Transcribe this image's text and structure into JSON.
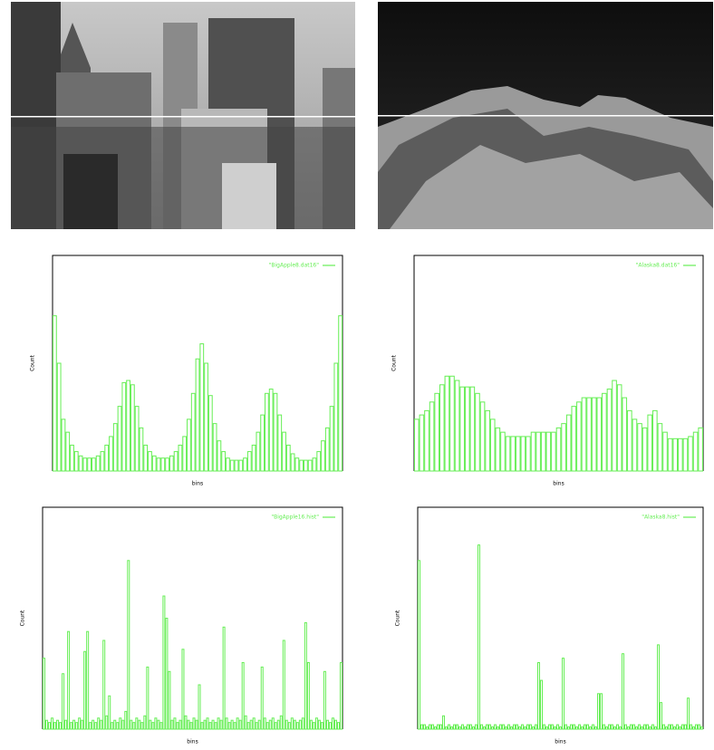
{
  "chart_data": [
    {
      "type": "bar",
      "legend": "\"BigApple8.dat16\"",
      "x_label": "bins",
      "y_label": "Count",
      "color": "#66ee55",
      "ylim": [
        0,
        100
      ],
      "values": [
        72,
        50,
        24,
        18,
        12,
        9,
        7,
        6,
        6,
        6,
        7,
        9,
        12,
        16,
        22,
        30,
        41,
        42,
        40,
        30,
        20,
        12,
        9,
        7,
        6,
        6,
        6,
        7,
        9,
        12,
        16,
        24,
        36,
        52,
        59,
        50,
        35,
        22,
        14,
        9,
        6,
        5,
        5,
        5,
        6,
        9,
        12,
        18,
        26,
        36,
        38,
        36,
        26,
        18,
        12,
        8,
        6,
        5,
        5,
        5,
        6,
        9,
        14,
        20,
        30,
        50,
        72
      ]
    },
    {
      "type": "bar",
      "legend": "\"Alaska8.dat16\"",
      "x_label": "bins",
      "y_label": "Count",
      "color": "#66ee55",
      "ylim": [
        0,
        100
      ],
      "values": [
        24,
        26,
        28,
        32,
        36,
        40,
        44,
        44,
        42,
        39,
        39,
        39,
        36,
        32,
        28,
        24,
        20,
        18,
        16,
        16,
        16,
        16,
        16,
        18,
        18,
        18,
        18,
        18,
        20,
        22,
        26,
        30,
        32,
        34,
        34,
        34,
        34,
        36,
        38,
        42,
        40,
        34,
        28,
        24,
        22,
        20,
        26,
        28,
        22,
        18,
        15,
        15,
        15,
        15,
        16,
        18,
        20
      ]
    },
    {
      "type": "bar",
      "legend": "\"BigApple16.hist\"",
      "x_label": "bins",
      "y_label": "Count",
      "color": "#66ee55",
      "ylim": [
        0,
        100
      ],
      "values": [
        32,
        4,
        3,
        5,
        3,
        4,
        3,
        25,
        4,
        44,
        3,
        4,
        3,
        5,
        4,
        35,
        44,
        3,
        4,
        3,
        5,
        4,
        40,
        6,
        15,
        3,
        4,
        3,
        5,
        4,
        8,
        76,
        4,
        3,
        5,
        4,
        3,
        6,
        28,
        4,
        3,
        5,
        4,
        3,
        60,
        50,
        26,
        4,
        5,
        3,
        4,
        36,
        6,
        4,
        3,
        5,
        4,
        20,
        3,
        4,
        5,
        3,
        4,
        3,
        5,
        4,
        46,
        5,
        3,
        4,
        3,
        5,
        4,
        30,
        6,
        3,
        4,
        5,
        3,
        4,
        28,
        5,
        3,
        4,
        5,
        3,
        4,
        6,
        40,
        4,
        3,
        5,
        4,
        3,
        4,
        5,
        48,
        30,
        4,
        3,
        5,
        4,
        3,
        26,
        4,
        3,
        5,
        4,
        3,
        30
      ]
    },
    {
      "type": "bar",
      "legend": "\"Alaska8.hist\"",
      "x_label": "bins",
      "y_label": "Count",
      "color": "#66ee55",
      "ylim": [
        0,
        100
      ],
      "values": [
        76,
        2,
        2,
        1,
        2,
        2,
        1,
        2,
        2,
        6,
        1,
        2,
        1,
        2,
        2,
        1,
        2,
        1,
        2,
        2,
        1,
        2,
        83,
        2,
        1,
        2,
        2,
        1,
        2,
        1,
        2,
        2,
        1,
        2,
        1,
        2,
        2,
        1,
        2,
        1,
        2,
        2,
        1,
        2,
        30,
        22,
        2,
        1,
        2,
        2,
        1,
        2,
        1,
        32,
        2,
        1,
        2,
        2,
        1,
        2,
        1,
        2,
        2,
        1,
        2,
        1,
        16,
        16,
        2,
        1,
        2,
        2,
        1,
        2,
        1,
        34,
        2,
        1,
        2,
        2,
        1,
        2,
        1,
        2,
        2,
        1,
        2,
        1,
        38,
        12,
        2,
        1,
        2,
        2,
        1,
        2,
        1,
        2,
        2,
        14,
        2,
        1,
        2,
        2,
        1
      ]
    }
  ]
}
